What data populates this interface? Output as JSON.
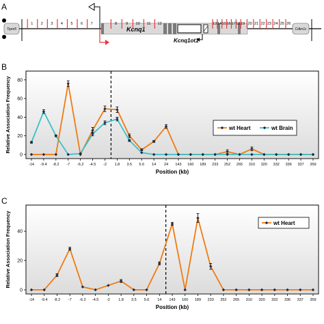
{
  "panels": {
    "a_letter": "A",
    "b_letter": "B",
    "c_letter": "C"
  },
  "panel_a": {
    "genes": {
      "trpm5": "Trpm5",
      "kcnq1": "Kcnq1",
      "kcnq1ot1": "Kcnq1ot1",
      "cdkn1c": "Cdkn1c"
    },
    "fragments_left": [
      "1",
      "2",
      "3",
      "4",
      "5",
      "6",
      "7"
    ],
    "fragments_mid": [
      "8",
      "9",
      "10",
      "11",
      "12"
    ],
    "fragments_right_1": [
      "13",
      "14",
      "15",
      "16",
      "17",
      "18",
      "19"
    ],
    "fragments_right_2": [
      "20",
      "21",
      "22",
      "23",
      "24",
      "25",
      "26"
    ],
    "colors": {
      "cut_site": "#e8373a",
      "gene_box": "#d9d9d9",
      "exon": "#7a7a7a",
      "arrow_red": "#e8373a"
    }
  },
  "chart_data": [
    {
      "panel": "B",
      "type": "line",
      "ylabel": "Relative Association Frequency",
      "xlabel": "Position (kb)",
      "ylim": [
        0,
        85
      ],
      "yticks": [
        "0",
        "20",
        "40",
        "60",
        "80"
      ],
      "categories": [
        "-14",
        "-9.4",
        "-8.2",
        "-7",
        "-6.2",
        "-4.5",
        "-2",
        "1.8",
        "3.5",
        "5.6",
        "14",
        "24",
        "143",
        "160",
        "189",
        "233",
        "252",
        "265",
        "310",
        "320",
        "332",
        "336",
        "337",
        "359"
      ],
      "break_after_index": 6,
      "legend_position": "right",
      "series": [
        {
          "name": "wt Heart",
          "color": "#f07a10",
          "values": [
            0,
            0,
            0,
            76,
            0,
            26,
            49,
            48,
            20,
            5,
            14,
            30,
            0,
            0,
            0,
            0,
            3,
            0,
            6,
            0,
            0,
            0,
            0,
            0
          ],
          "errors": [
            0,
            0,
            0,
            3,
            0,
            3,
            3,
            3,
            2,
            1,
            1,
            2,
            0,
            0,
            0,
            0,
            2,
            0,
            2,
            0,
            0,
            0,
            0,
            0
          ]
        },
        {
          "name": "wt Brain",
          "color": "#3bc0c8",
          "values": [
            13,
            46,
            20,
            0,
            1,
            22,
            34,
            38,
            15,
            2,
            0,
            0,
            0,
            0,
            0,
            0,
            0,
            0,
            0,
            0,
            0,
            0,
            0,
            0
          ],
          "errors": [
            1,
            2,
            1,
            0,
            0,
            2,
            2,
            2,
            1,
            0,
            0,
            0,
            0,
            0,
            0,
            0,
            0,
            0,
            0,
            0,
            0,
            0,
            0,
            0
          ]
        }
      ]
    },
    {
      "panel": "C",
      "type": "line",
      "ylabel": "Relative Association Frequency",
      "xlabel": "Position (kb)",
      "ylim": [
        0,
        55
      ],
      "yticks": [
        "0",
        "20",
        "40"
      ],
      "categories": [
        "-14",
        "-9.4",
        "-8.2",
        "-7",
        "-6.2",
        "-4.5",
        "-2",
        "1.8",
        "3.5",
        "5.6",
        "14",
        "143",
        "160",
        "189",
        "233",
        "252",
        "265",
        "310",
        "320",
        "332",
        "336",
        "337",
        "359"
      ],
      "break_after_index": 10,
      "legend_position": "top-right",
      "series": [
        {
          "name": "wt Heart",
          "color": "#f07a10",
          "values": [
            0,
            0,
            10,
            28,
            2,
            0,
            3,
            6,
            0,
            0,
            18,
            45,
            0,
            49,
            16,
            0,
            0,
            0,
            0,
            0,
            0,
            0,
            0
          ],
          "errors": [
            0,
            0,
            1,
            1,
            0,
            0,
            0,
            1,
            0,
            0,
            1,
            1,
            0,
            3,
            2,
            0,
            0,
            0,
            0,
            0,
            0,
            0,
            0
          ]
        }
      ]
    }
  ]
}
